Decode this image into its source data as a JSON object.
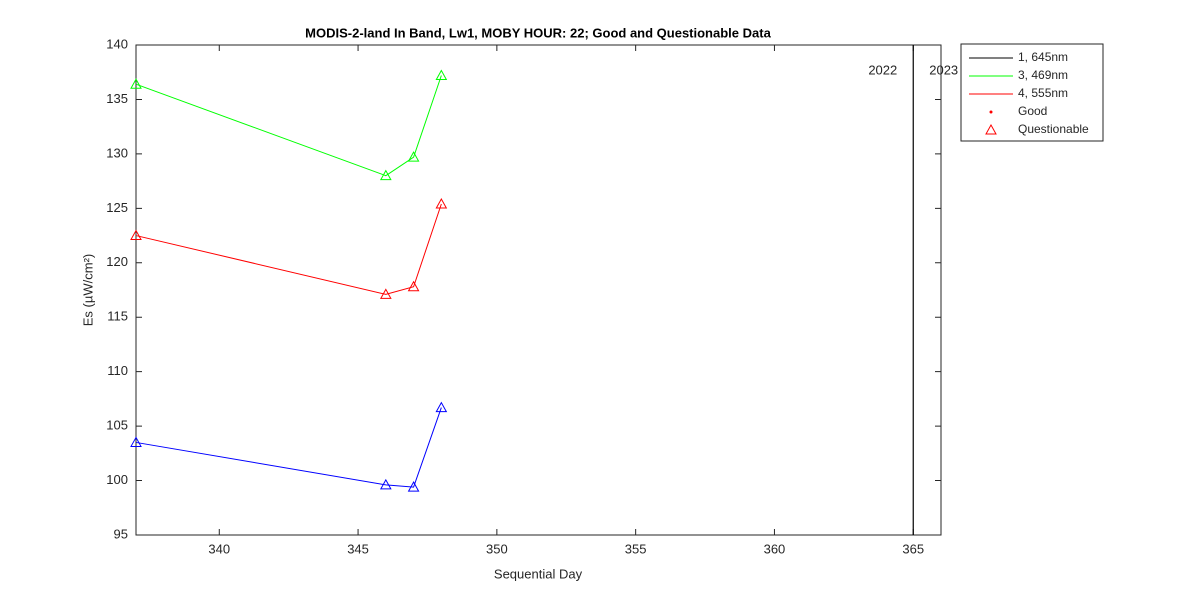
{
  "chart_data": {
    "type": "line",
    "title": "MODIS-2-land In Band,  Lw1, MOBY HOUR: 22;  Good and Questionable Data",
    "xlabel": "Sequential Day",
    "ylabel": "Es (µW/cm²)",
    "x": [
      337,
      346,
      347,
      348
    ],
    "series": [
      {
        "color": "#00ff00",
        "values": [
          136.4,
          128.0,
          129.7,
          137.2
        ]
      },
      {
        "color": "#ff0000",
        "values": [
          122.5,
          117.1,
          117.8,
          125.4
        ]
      },
      {
        "color": "#0000ff",
        "values": [
          103.5,
          99.6,
          99.4,
          106.7
        ]
      }
    ],
    "marker": "triangle",
    "xlim": [
      337,
      366
    ],
    "xticks": [
      340,
      345,
      350,
      355,
      360,
      365
    ],
    "ylim": [
      95,
      140
    ],
    "yticks": [
      95,
      100,
      105,
      110,
      115,
      120,
      125,
      130,
      135,
      140
    ],
    "year_boundary": 365,
    "year_labels": [
      "2022",
      "2023"
    ],
    "legend": [
      {
        "label": "1, 645nm",
        "color": "#000000",
        "marker": "line"
      },
      {
        "label": "3, 469nm",
        "color": "#00ff00",
        "marker": "line"
      },
      {
        "label": "4, 555nm",
        "color": "#ff0000",
        "marker": "line"
      },
      {
        "label": "Good",
        "color": "#ff0000",
        "marker": "dot"
      },
      {
        "label": "Questionable",
        "color": "#ff0000",
        "marker": "triangle"
      }
    ],
    "legend_position": "outside-right"
  }
}
